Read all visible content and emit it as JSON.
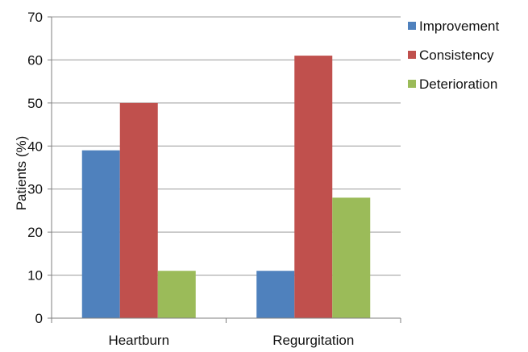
{
  "chart_data": {
    "type": "bar",
    "title": "",
    "xlabel": "",
    "ylabel": "Patients (%)",
    "ylim": [
      0,
      70
    ],
    "yticks": [
      0,
      10,
      20,
      30,
      40,
      50,
      60,
      70
    ],
    "grid": true,
    "legend_position": "top-right",
    "categories": [
      "Heartburn",
      "Regurgitation"
    ],
    "series": [
      {
        "name": "Improvement",
        "color": "#4f81bd",
        "values": [
          39,
          11
        ]
      },
      {
        "name": "Consistency",
        "color": "#c0504d",
        "values": [
          50,
          61
        ]
      },
      {
        "name": "Deterioration",
        "color": "#9bbb59",
        "values": [
          11,
          28
        ]
      }
    ]
  }
}
